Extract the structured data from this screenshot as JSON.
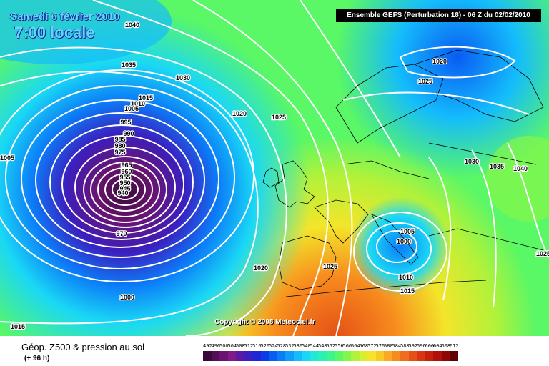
{
  "header": {
    "date": "Samedi 6 février 2010",
    "time": "7:00 locale",
    "run": "Ensemble GEFS (Perturbation 18)  -  06 Z du 02/02/2010"
  },
  "copyright": "Copyright © 2008 Meteociel.fr",
  "footer": {
    "title": "Géop. Z500 & pression au sol",
    "subtitle": "(+ 96 h)"
  },
  "scale": {
    "values": [
      "492",
      "496",
      "500",
      "504",
      "508",
      "512",
      "516",
      "520",
      "524",
      "528",
      "532",
      "536",
      "540",
      "544",
      "548",
      "552",
      "556",
      "560",
      "564",
      "568",
      "572",
      "576",
      "580",
      "584",
      "588",
      "592",
      "596",
      "600",
      "604",
      "608",
      "612"
    ],
    "colors": [
      "#3a0a3a",
      "#520f55",
      "#6a1470",
      "#7f1c8a",
      "#5a1aa5",
      "#3b1fbf",
      "#1f26d6",
      "#0c3ce8",
      "#0a5cf2",
      "#0b7cf8",
      "#0f9cfb",
      "#14bcfc",
      "#1ad8f5",
      "#22e8d8",
      "#2ef0b4",
      "#3ef58d",
      "#5af766",
      "#84f54a",
      "#b2f23a",
      "#d7ef2e",
      "#f3e52a",
      "#f9c926",
      "#f9aa22",
      "#f78c1e",
      "#f06d1a",
      "#e55016",
      "#d83612",
      "#c8200e",
      "#b0120a",
      "#900806",
      "#600202"
    ]
  },
  "isobar_labels": [
    {
      "text": "1040"
    },
    {
      "text": "1035"
    },
    {
      "text": "1030"
    },
    {
      "text": "1015"
    },
    {
      "text": "1010"
    },
    {
      "text": "1005"
    },
    {
      "text": "995"
    },
    {
      "text": "990"
    },
    {
      "text": "985"
    },
    {
      "text": "980"
    },
    {
      "text": "975"
    },
    {
      "text": "965"
    },
    {
      "text": "960"
    },
    {
      "text": "955"
    },
    {
      "text": "950"
    },
    {
      "text": "945"
    },
    {
      "text": "940"
    },
    {
      "text": "970"
    },
    {
      "text": "1005"
    },
    {
      "text": "1020"
    },
    {
      "text": "1025"
    },
    {
      "text": "1020"
    },
    {
      "text": "1025"
    },
    {
      "text": "1030"
    },
    {
      "text": "1035"
    },
    {
      "text": "1040"
    },
    {
      "text": "1005"
    },
    {
      "text": "1000"
    },
    {
      "text": "1010"
    },
    {
      "text": "1015"
    },
    {
      "text": "1025"
    },
    {
      "text": "1020"
    },
    {
      "text": "1025"
    },
    {
      "text": "1000"
    },
    {
      "text": "1015"
    }
  ]
}
